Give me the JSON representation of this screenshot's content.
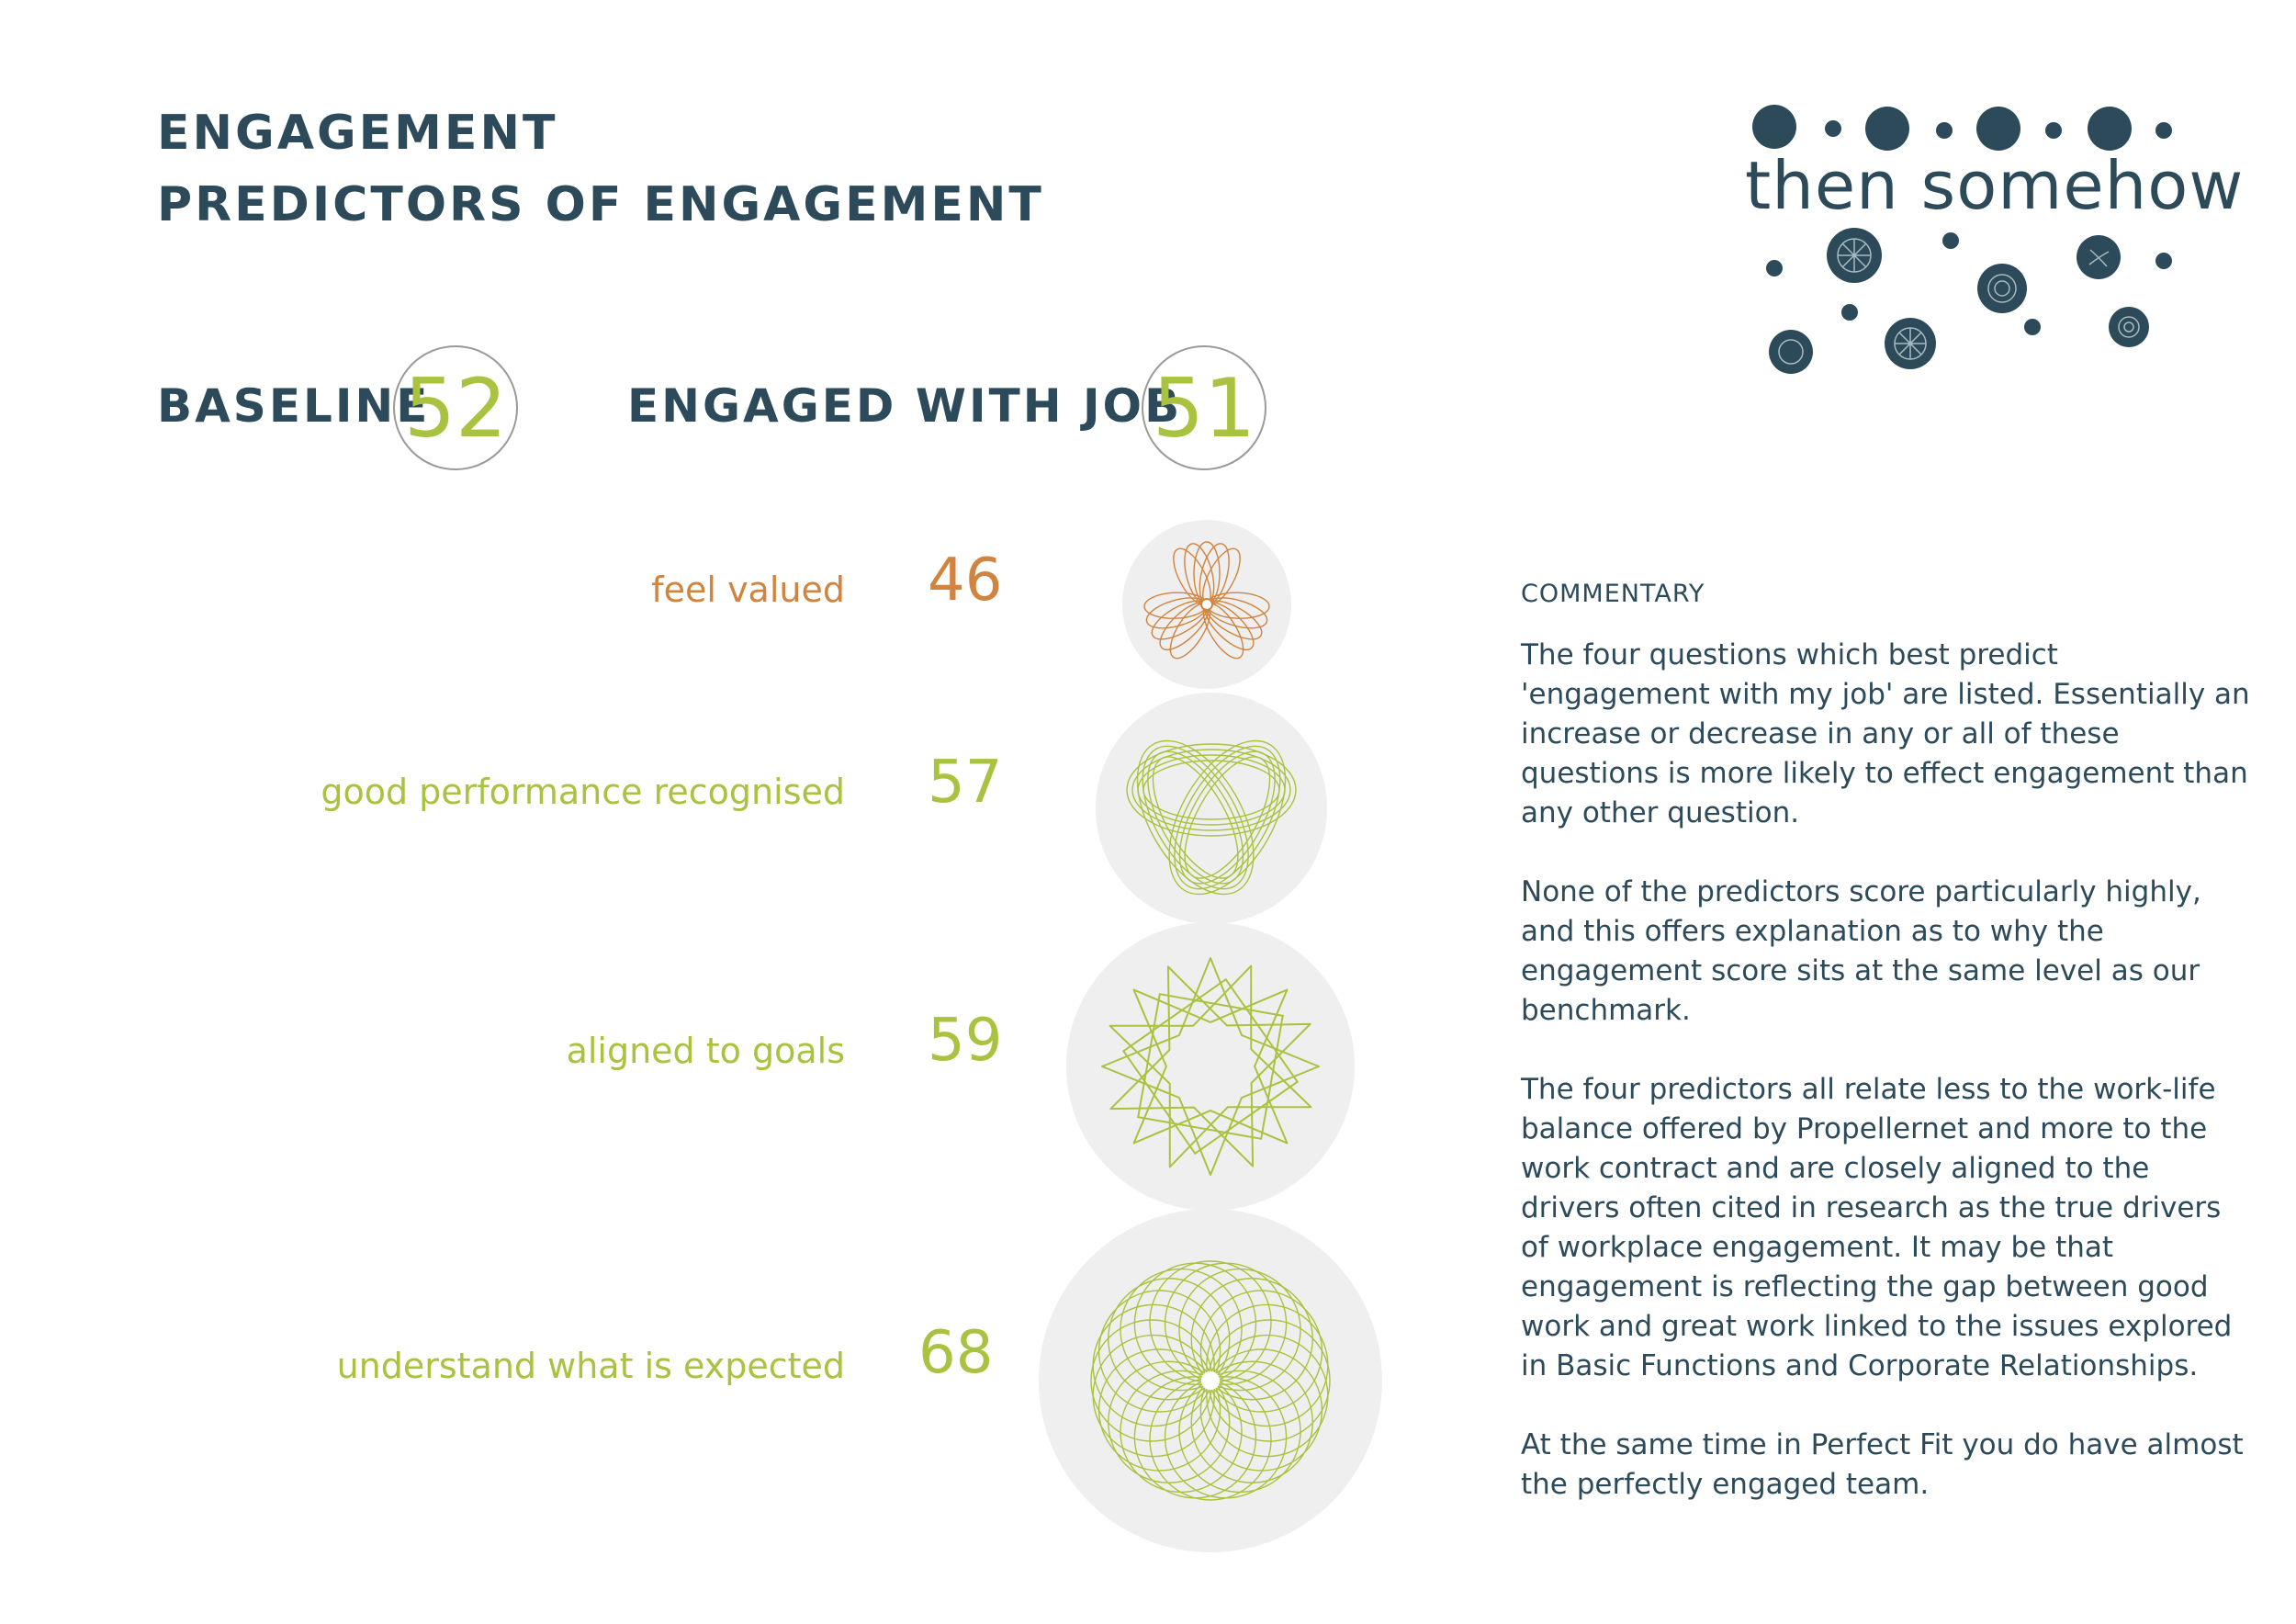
{
  "header": {
    "title": "ENGAGEMENT",
    "subtitle": "PREDICTORS OF ENGAGEMENT"
  },
  "logo": {
    "text": "then somehow"
  },
  "scores": {
    "baseline_label": "BASELINE",
    "baseline_value": "52",
    "engaged_label": "ENGAGED WITH JOB",
    "engaged_value": "51"
  },
  "predictors": [
    {
      "label": "feel valued",
      "value": "46",
      "color": "#d0843f",
      "icon": "trefoil-spirograph"
    },
    {
      "label": "good performance recognised",
      "value": "57",
      "color": "#a9c23f",
      "icon": "triple-loop-spirograph"
    },
    {
      "label": "aligned to goals",
      "value": "59",
      "color": "#a9c23f",
      "icon": "star-spirograph"
    },
    {
      "label": "understand what is expected",
      "value": "68",
      "color": "#a9c23f",
      "icon": "rosette-spirograph"
    }
  ],
  "commentary": {
    "heading": "COMMENTARY",
    "paragraphs": [
      "The four questions which best predict 'engagement with my job' are listed.  Essentially an increase or decrease in any or all of these questions is more likely to effect engagement than any other question.",
      "None of the predictors score particularly highly, and this offers explanation as to why the engagement score sits at the same level as our benchmark.",
      "The four predictors all relate less to the work-life balance offered by Propellernet and more to the work contract and are closely aligned to the drivers often cited in research as the true drivers of workplace engagement. It may be that engagement is reflecting the gap between good work and great work linked to the issues explored in Basic Functions and Corporate Relationships.",
      "At the same time in Perfect Fit you do have almost the perfectly engaged team."
    ]
  },
  "colors": {
    "navy": "#2c4a5a",
    "green": "#a9c23f",
    "orange": "#d0843f",
    "disc": "#efefef"
  }
}
